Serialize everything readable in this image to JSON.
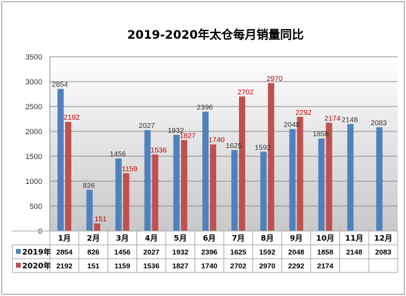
{
  "chart_data": {
    "type": "bar",
    "title": "2019-2020年太仓每月销量同比",
    "categories": [
      "1月",
      "2月",
      "3月",
      "4月",
      "5月",
      "6月",
      "7月",
      "8月",
      "9月",
      "10月",
      "11月",
      "12月"
    ],
    "series": [
      {
        "name": "2019年",
        "color": "#4f81bd",
        "values": [
          2854,
          826,
          1456,
          2027,
          1932,
          2396,
          1625,
          1592,
          2048,
          1858,
          2148,
          2083
        ]
      },
      {
        "name": "2020年",
        "color": "#c0504d",
        "values": [
          2192,
          151,
          1159,
          1536,
          1827,
          1740,
          2702,
          2970,
          2292,
          2174,
          null,
          null
        ]
      }
    ],
    "ylim": [
      0,
      3500
    ],
    "yticks": [
      0,
      500,
      1000,
      1500,
      2000,
      2500,
      3000,
      3500
    ],
    "grid": true,
    "data_table": true,
    "label_colors": {
      "2019年": "#333333",
      "2020年": "#c00000"
    }
  }
}
